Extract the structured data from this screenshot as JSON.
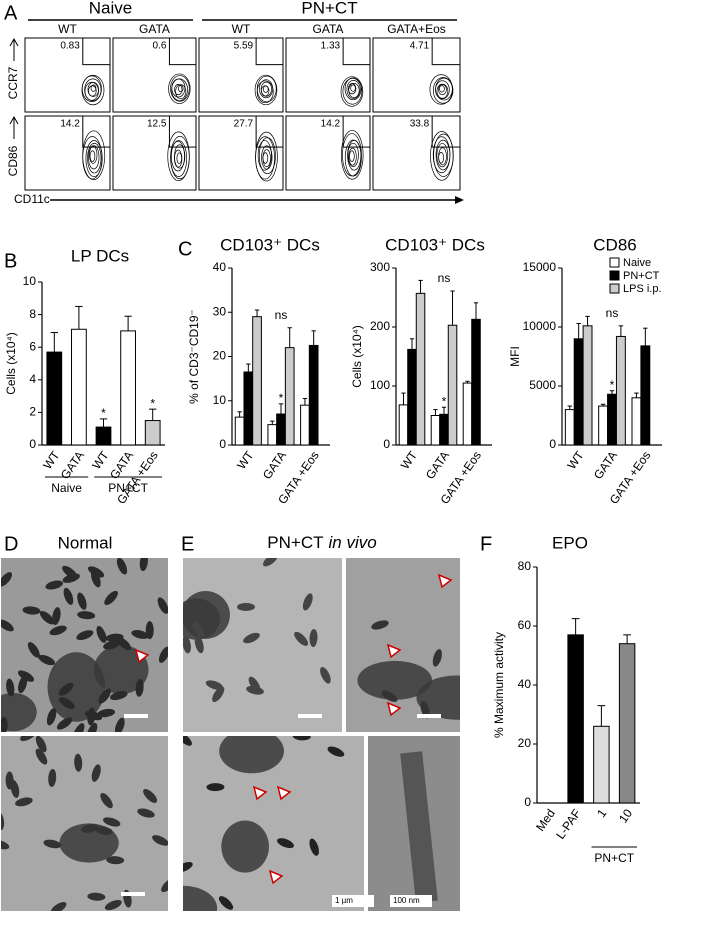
{
  "flow": {
    "panel_label": "A",
    "groups": [
      {
        "label": "Naive",
        "span": [
          0,
          1
        ]
      },
      {
        "label": "PN+CT",
        "span": [
          2,
          4
        ]
      }
    ],
    "column_headers": [
      "WT",
      "GATA",
      "WT",
      "GATA",
      "GATA+Eos"
    ],
    "rows": [
      {
        "marker": "CCR7",
        "gate_values": [
          0.83,
          0.6,
          5.59,
          1.33,
          4.71
        ]
      },
      {
        "marker": "CD86",
        "gate_values": [
          14.2,
          12.5,
          27.7,
          14.2,
          33.8
        ]
      }
    ],
    "x_marker": "CD11c"
  },
  "chart_data": [
    {
      "type": "bar",
      "panel_label": "B",
      "title": "LP DCs",
      "y_label": "Cells (x10⁴)",
      "categories": [
        "WT",
        "GATA",
        "WT",
        "GATA",
        "GATA +Eos"
      ],
      "values": [
        5.7,
        7.1,
        1.1,
        7.0,
        1.5
      ],
      "errors": [
        1.2,
        1.4,
        0.5,
        0.9,
        0.7
      ],
      "colors": [
        "#000000",
        "#ffffff",
        "#000000",
        "#ffffff",
        "#cccccc"
      ],
      "ylim": [
        0,
        10
      ],
      "yticks": [
        0,
        2,
        4,
        6,
        8,
        10
      ],
      "groups": [
        {
          "label": "Naive",
          "span": [
            0,
            1
          ]
        },
        {
          "label": "PN+CT",
          "span": [
            2,
            4
          ]
        }
      ],
      "annotations": [
        {
          "text": "*",
          "category": 2
        },
        {
          "text": "*",
          "category": 4
        }
      ]
    },
    {
      "type": "grouped-bar",
      "panel_label": "C",
      "title": "CD103⁺ DCs",
      "y_label": "% of CD3⁻CD19⁻",
      "categories": [
        "WT",
        "GATA",
        "GATA +Eos"
      ],
      "series": [
        {
          "name": "Naive",
          "color": "#ffffff",
          "values": [
            6.3,
            4.6,
            9.0
          ],
          "errors": [
            1.2,
            0.8,
            1.5
          ]
        },
        {
          "name": "PN+CT",
          "color": "#000000",
          "values": [
            16.5,
            7.0,
            22.5
          ],
          "errors": [
            1.8,
            2.3,
            3.3
          ]
        },
        {
          "name": "LPS i.p.",
          "color": "#cccccc",
          "values": [
            29.0,
            22.0,
            null
          ],
          "errors": [
            1.5,
            4.5,
            null
          ]
        }
      ],
      "ylim": [
        0,
        40
      ],
      "yticks": [
        0,
        10,
        20,
        30,
        40
      ],
      "legend": false,
      "annotations": [
        {
          "text": "*",
          "category": 1,
          "series": 1
        },
        {
          "text": "ns",
          "category": 1
        }
      ]
    },
    {
      "type": "grouped-bar",
      "title": "CD103⁺ DCs",
      "y_label": "Cells  (x10⁴)",
      "categories": [
        "WT",
        "GATA",
        "GATA +Eos"
      ],
      "series": [
        {
          "name": "Naive",
          "color": "#ffffff",
          "values": [
            68,
            50,
            105
          ],
          "errors": [
            20,
            10,
            3
          ]
        },
        {
          "name": "PN+CT",
          "color": "#000000",
          "values": [
            162,
            52,
            213
          ],
          "errors": [
            18,
            12,
            28
          ]
        },
        {
          "name": "LPS i.p.",
          "color": "#cccccc",
          "values": [
            257,
            203,
            null
          ],
          "errors": [
            22,
            58,
            null
          ]
        }
      ],
      "ylim": [
        0,
        300
      ],
      "yticks": [
        0,
        100,
        200,
        300
      ],
      "legend": false,
      "annotations": [
        {
          "text": "*",
          "category": 1,
          "series": 1
        },
        {
          "text": "ns",
          "category": 1
        }
      ]
    },
    {
      "type": "grouped-bar",
      "title": "CD86",
      "y_label": "MFI",
      "categories": [
        "WT",
        "GATA",
        "GATA +Eos"
      ],
      "series": [
        {
          "name": "Naive",
          "color": "#ffffff",
          "values": [
            3000,
            3300,
            4000
          ],
          "errors": [
            300,
            150,
            400
          ]
        },
        {
          "name": "PN+CT",
          "color": "#000000",
          "values": [
            9000,
            4300,
            8400
          ],
          "errors": [
            1300,
            300,
            1500
          ]
        },
        {
          "name": "LPS i.p.",
          "color": "#cccccc",
          "values": [
            10100,
            9200,
            null
          ],
          "errors": [
            800,
            900,
            null
          ]
        }
      ],
      "ylim": [
        0,
        15000
      ],
      "yticks": [
        0,
        5000,
        10000,
        15000
      ],
      "legend": true,
      "annotations": [
        {
          "text": "*",
          "category": 1,
          "series": 1
        },
        {
          "text": "ns",
          "category": 1
        }
      ]
    },
    {
      "type": "bar",
      "panel_label": "F",
      "title": "EPO",
      "y_label": "% Maximum activity",
      "categories": [
        "Med",
        "L-PAF",
        "1",
        "10"
      ],
      "values": [
        0,
        57,
        26,
        54
      ],
      "errors": [
        null,
        5.5,
        7,
        3
      ],
      "colors": [
        "#000000",
        "#000000",
        "#dddddd",
        "#888888"
      ],
      "ylim": [
        0,
        80
      ],
      "yticks": [
        0,
        20,
        40,
        60,
        80
      ],
      "groups": [
        {
          "label": "PN+CT",
          "span": [
            2,
            3
          ]
        }
      ]
    }
  ],
  "micrographs": [
    {
      "panel_label": "D",
      "title": "Normal"
    },
    {
      "panel_label": "E",
      "title": "PN+CT",
      "title_italic": "in vivo",
      "scale_labels": [
        "1 µm",
        "100 nm"
      ]
    }
  ]
}
